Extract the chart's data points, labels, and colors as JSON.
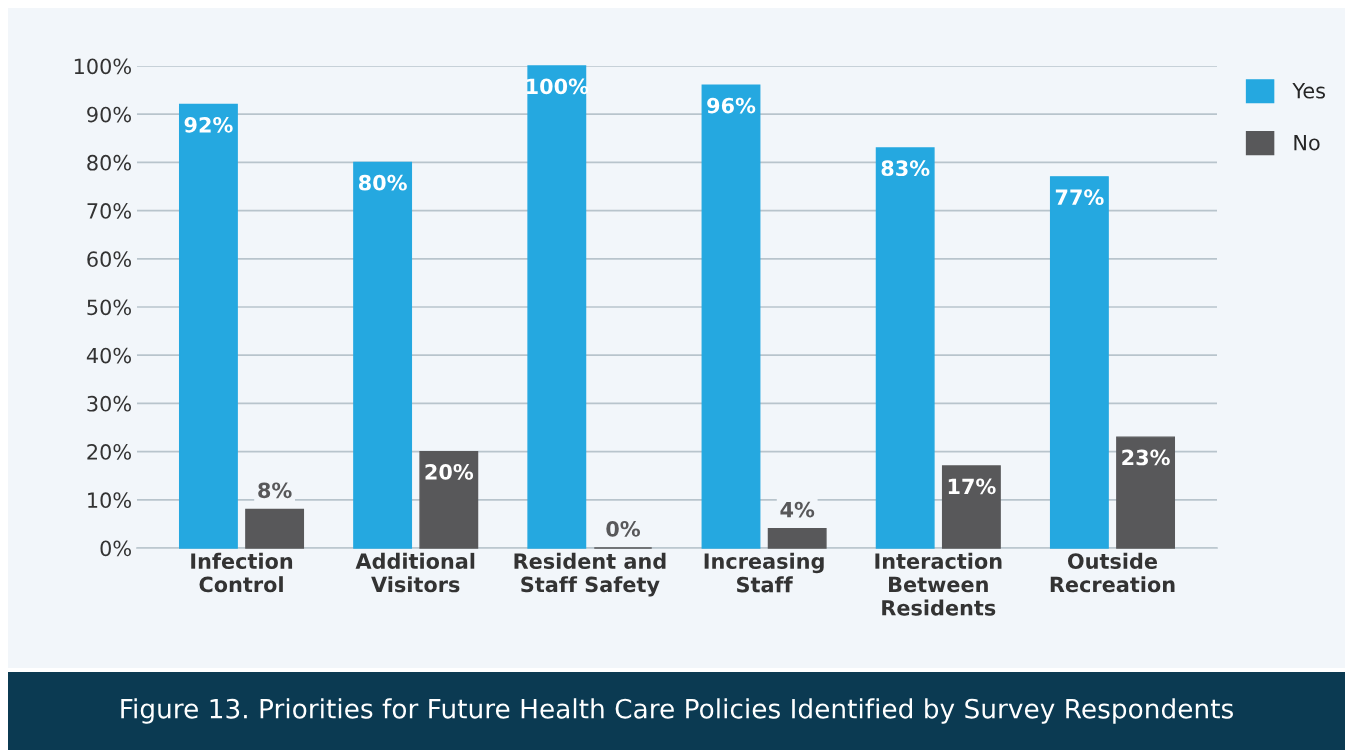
{
  "chart_data": {
    "type": "bar",
    "title": "Figure 13. Priorities for Future Health Care Policies Identified by Survey Respondents",
    "categories": [
      "Infection\nControl",
      "Additional\nVisitors",
      "Resident and\nStaff Safety",
      "Increasing\nStaff",
      "Interaction\nBetween\nResidents",
      "Outside\nRecreation"
    ],
    "series": [
      {
        "name": "Yes",
        "color": "#25a8e0",
        "values": [
          92,
          80,
          100,
          96,
          83,
          77
        ],
        "value_labels": [
          "92%",
          "80%",
          "100%",
          "96%",
          "83%",
          "77%"
        ]
      },
      {
        "name": "No",
        "color": "#58585a",
        "values": [
          8,
          20,
          0,
          4,
          17,
          23
        ],
        "value_labels": [
          "8%",
          "20%",
          "0%",
          "4%",
          "17%",
          "23%"
        ]
      }
    ],
    "ylim": [
      0,
      100
    ],
    "yticks": [
      {
        "value": 0,
        "label": "0%"
      },
      {
        "value": 10,
        "label": "10%"
      },
      {
        "value": 20,
        "label": "20%"
      },
      {
        "value": 30,
        "label": "30%"
      },
      {
        "value": 40,
        "label": "40%"
      },
      {
        "value": 50,
        "label": "50%"
      },
      {
        "value": 60,
        "label": "60%"
      },
      {
        "value": 70,
        "label": "70%"
      },
      {
        "value": 80,
        "label": "80%"
      },
      {
        "value": 90,
        "label": "90%"
      },
      {
        "value": 100,
        "label": "100%"
      }
    ],
    "grid": "y",
    "legend": "top right"
  }
}
